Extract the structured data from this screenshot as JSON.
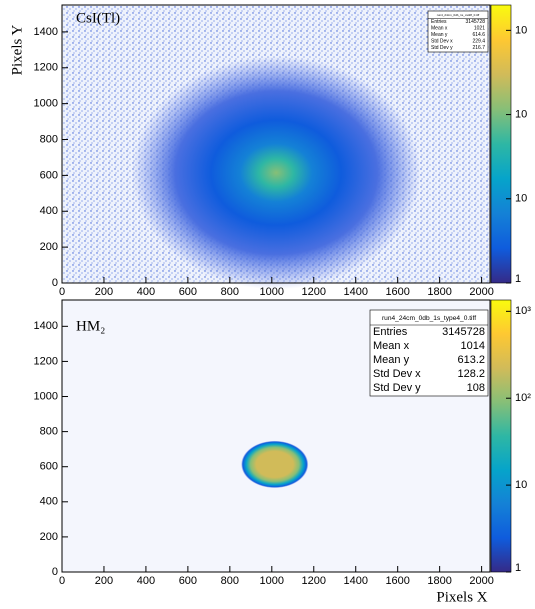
{
  "chart_data": [
    {
      "type": "heatmap2d",
      "label": "CsI(Tl)",
      "ylabel": "Pixels Y",
      "xlim": [
        0,
        2040
      ],
      "xticks": [
        0,
        200,
        400,
        600,
        800,
        1000,
        1200,
        1400,
        1600,
        1800,
        2000
      ],
      "ylim": [
        0,
        1550
      ],
      "yticks": [
        0,
        200,
        400,
        600,
        800,
        1000,
        1200,
        1400
      ],
      "zlim": [
        1,
        2000
      ],
      "zlog": true,
      "zticks": [
        {
          "value": 1000,
          "label": "10"
        },
        {
          "value": 100,
          "label": "10"
        },
        {
          "value": 10,
          "label": "10"
        },
        1
      ],
      "palette": [
        "#352a87",
        "#0f5cdd",
        "#1481d6",
        "#06a4ca",
        "#2eb7a4",
        "#87bf77",
        "#d1bb59",
        "#fec832",
        "#f9fb0e"
      ],
      "stats": {
        "title": "run4_24cm_0db_1s_csi28_0.tiff",
        "rows": [
          [
            "Entries",
            3145728
          ],
          [
            "Mean x",
            1021
          ],
          [
            "Mean y",
            614.6
          ],
          [
            "Std Dev x",
            229.4
          ],
          [
            "Std Dev y",
            216.7
          ]
        ]
      }
    },
    {
      "type": "heatmap2d",
      "label": "HM₂",
      "xlabel": "Pixels X",
      "xlim": [
        0,
        2040
      ],
      "xticks": [
        0,
        200,
        400,
        600,
        800,
        1000,
        1200,
        1400,
        1600,
        1800,
        2000
      ],
      "ylim": [
        0,
        1550
      ],
      "yticks": [
        0,
        200,
        400,
        600,
        800,
        1000,
        1200,
        1400
      ],
      "zlim": [
        1,
        1350
      ],
      "zlog": true,
      "zticks": [
        {
          "value": 1000,
          "label": "10³"
        },
        {
          "value": 100,
          "label": "10²"
        },
        10,
        1
      ],
      "palette": [
        "#352a87",
        "#0f5cdd",
        "#1481d6",
        "#06a4ca",
        "#2eb7a4",
        "#87bf77",
        "#d1bb59",
        "#fec832",
        "#f9fb0e"
      ],
      "stats": {
        "title": "run4_24cm_0db_1s_type4_0.tiff",
        "rows": [
          [
            "Entries",
            3145728
          ],
          [
            "Mean x",
            1014
          ],
          [
            "Mean y",
            613.2
          ],
          [
            "Std Dev x",
            128.2
          ],
          [
            "Std Dev y",
            108
          ]
        ]
      }
    }
  ]
}
